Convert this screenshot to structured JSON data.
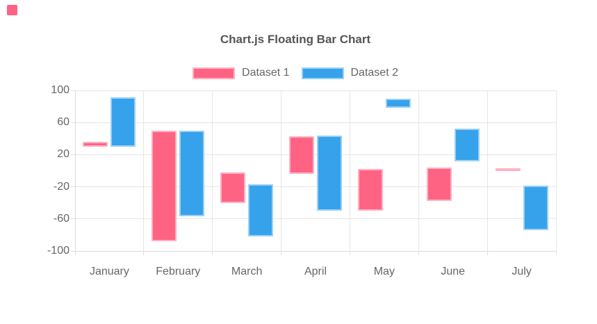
{
  "page": {
    "brand_color": "#FF6384"
  },
  "chart_data": {
    "type": "bar",
    "variant": "floating",
    "title": "Chart.js Floating Bar Chart",
    "categories": [
      "January",
      "February",
      "March",
      "April",
      "May",
      "June",
      "July"
    ],
    "series": [
      {
        "name": "Dataset 1",
        "color": "#FF6384",
        "border_color": "#FFB1C1",
        "ranges": [
          [
            30,
            36
          ],
          [
            -88,
            50
          ],
          [
            -40,
            -2
          ],
          [
            -4,
            43
          ],
          [
            -50,
            2
          ],
          [
            -38,
            4
          ],
          [
            2,
            3
          ]
        ]
      },
      {
        "name": "Dataset 2",
        "color": "#36A2EB",
        "border_color": "#9BD0F5",
        "ranges": [
          [
            30,
            91
          ],
          [
            -57,
            50
          ],
          [
            -82,
            -17
          ],
          [
            -50,
            44
          ],
          [
            78,
            90
          ],
          [
            12,
            52
          ],
          [
            -74,
            -19
          ]
        ]
      }
    ],
    "y_ticks": [
      100,
      60,
      20,
      -20,
      -60,
      -100
    ],
    "ylim": [
      -100,
      100
    ],
    "grid": true,
    "legend_position": "top",
    "text_color": "#666666",
    "grid_color": "#e6e6e6"
  }
}
